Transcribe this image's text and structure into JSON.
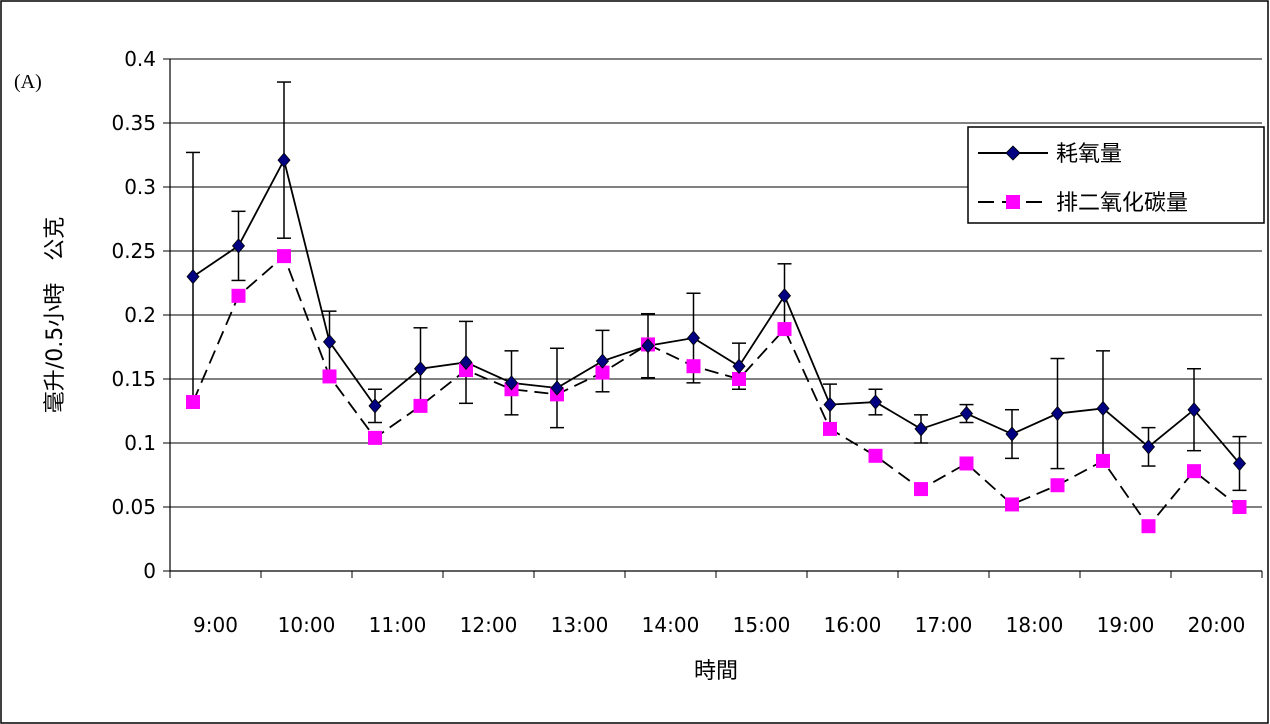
{
  "chart_data": {
    "type": "line",
    "panel_label": "(A)",
    "title": "",
    "xlabel": "時間",
    "ylabel": "毫升/0.5小時　公克",
    "ylim": [
      0,
      0.4
    ],
    "yticks": [
      0,
      0.05,
      0.1,
      0.15,
      0.2,
      0.25,
      0.3,
      0.35,
      0.4
    ],
    "ytick_labels": [
      "0",
      "0.05",
      "0.1",
      "0.15",
      "0.2",
      "0.25",
      "0.3",
      "0.35",
      "0.4"
    ],
    "xtick_labels": [
      "9:00",
      "10:00",
      "11:00",
      "12:00",
      "13:00",
      "14:00",
      "15:00",
      "16:00",
      "17:00",
      "18:00",
      "19:00",
      "20:00"
    ],
    "grid": true,
    "legend_position": "top-right",
    "series": [
      {
        "name": "耗氧量",
        "color": "#000080",
        "line_style": "solid",
        "marker": "diamond",
        "values": [
          0.23,
          0.254,
          0.321,
          0.179,
          0.129,
          0.158,
          0.163,
          0.147,
          0.143,
          0.164,
          0.176,
          0.182,
          0.16,
          0.215,
          0.13,
          0.132,
          0.111,
          0.123,
          0.107,
          0.123,
          0.127,
          0.097,
          0.126,
          0.084
        ],
        "errors": [
          0.097,
          0.027,
          0.061,
          0.024,
          0.013,
          0.032,
          0.032,
          0.025,
          0.031,
          0.024,
          0.025,
          0.035,
          0.018,
          0.025,
          0.016,
          0.01,
          0.011,
          0.007,
          0.019,
          0.043,
          0.045,
          0.015,
          0.032,
          0.021
        ]
      },
      {
        "name": "排二氧化碳量",
        "color": "#ff00ff",
        "line_style": "dashed",
        "marker": "square",
        "values": [
          0.132,
          0.215,
          0.246,
          0.152,
          0.104,
          0.129,
          0.157,
          0.142,
          0.138,
          0.155,
          0.177,
          0.16,
          0.15,
          0.189,
          0.111,
          0.09,
          0.064,
          0.084,
          0.052,
          0.067,
          0.086,
          0.035,
          0.078,
          0.05
        ]
      }
    ]
  }
}
